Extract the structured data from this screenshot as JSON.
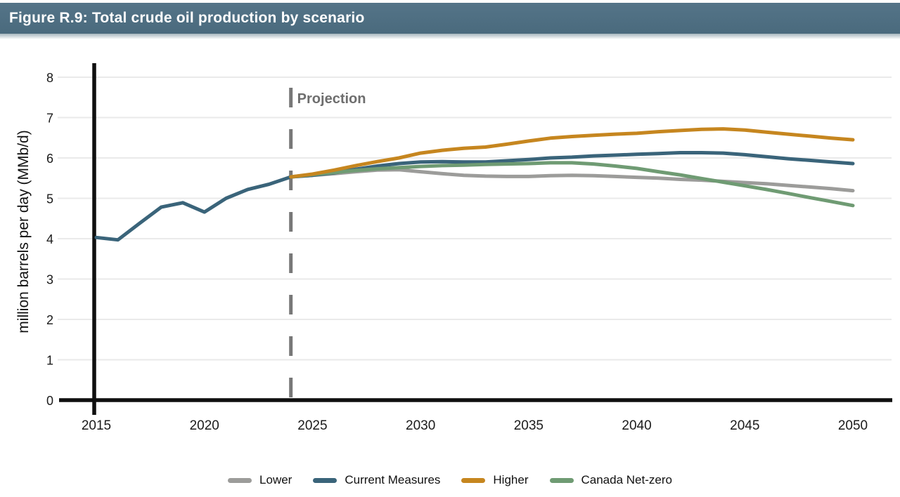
{
  "header": {
    "title": "Figure R.9: Total crude oil production by scenario",
    "background": "#4E6E80"
  },
  "chart_data": {
    "type": "line",
    "title": "Figure R.9: Total crude oil production by scenario",
    "ylabel": "million barrels per day (MMb/d)",
    "xlabel": "",
    "ylim": [
      0,
      8
    ],
    "xlim": [
      2013.3,
      2051.8
    ],
    "yticks": [
      0,
      1,
      2,
      3,
      4,
      5,
      6,
      7,
      8
    ],
    "xticks": [
      2015,
      2020,
      2025,
      2030,
      2035,
      2040,
      2045,
      2050
    ],
    "grid": "horizontal",
    "gridline_color": "#eaeaea",
    "axis_color": "#0f0f0f",
    "legend_position": "bottom",
    "annotation": {
      "text": "Projection",
      "x": 2024,
      "style": "dashed-vertical-line",
      "color": "#787878",
      "text_color": "#6e6e6e"
    },
    "series": [
      {
        "name": "Historical",
        "legend": false,
        "color": "#3A647A",
        "x": [
          2015,
          2016,
          2017,
          2018,
          2019,
          2020,
          2021,
          2022,
          2023,
          2024
        ],
        "values": [
          4.03,
          3.97,
          4.38,
          4.78,
          4.89,
          4.66,
          5.0,
          5.22,
          5.35,
          5.53
        ]
      },
      {
        "name": "Lower",
        "legend": true,
        "color": "#9C9C9A",
        "x": [
          2024,
          2025,
          2026,
          2027,
          2028,
          2029,
          2030,
          2031,
          2032,
          2033,
          2034,
          2035,
          2036,
          2037,
          2038,
          2039,
          2040,
          2041,
          2042,
          2043,
          2044,
          2045,
          2046,
          2047,
          2048,
          2049,
          2050
        ],
        "values": [
          5.53,
          5.57,
          5.61,
          5.66,
          5.7,
          5.71,
          5.66,
          5.61,
          5.57,
          5.55,
          5.54,
          5.54,
          5.56,
          5.57,
          5.56,
          5.54,
          5.52,
          5.5,
          5.47,
          5.45,
          5.42,
          5.39,
          5.36,
          5.32,
          5.28,
          5.24,
          5.19
        ]
      },
      {
        "name": "Current Measures",
        "legend": true,
        "color": "#3A647A",
        "x": [
          2024,
          2025,
          2026,
          2027,
          2028,
          2029,
          2030,
          2031,
          2032,
          2033,
          2034,
          2035,
          2036,
          2037,
          2038,
          2039,
          2040,
          2041,
          2042,
          2043,
          2044,
          2045,
          2046,
          2047,
          2048,
          2049,
          2050
        ],
        "values": [
          5.53,
          5.57,
          5.63,
          5.72,
          5.8,
          5.86,
          5.9,
          5.91,
          5.9,
          5.9,
          5.93,
          5.96,
          6.0,
          6.02,
          6.05,
          6.07,
          6.09,
          6.11,
          6.13,
          6.13,
          6.12,
          6.08,
          6.03,
          5.98,
          5.94,
          5.9,
          5.86
        ]
      },
      {
        "name": "Canada Net-zero",
        "legend": true,
        "color": "#6F9B73",
        "x": [
          2024,
          2025,
          2026,
          2027,
          2028,
          2029,
          2030,
          2031,
          2032,
          2033,
          2034,
          2035,
          2036,
          2037,
          2038,
          2039,
          2040,
          2041,
          2042,
          2043,
          2044,
          2045,
          2046,
          2047,
          2048,
          2049,
          2050
        ],
        "values": [
          5.53,
          5.59,
          5.64,
          5.69,
          5.73,
          5.76,
          5.79,
          5.81,
          5.82,
          5.84,
          5.85,
          5.86,
          5.88,
          5.88,
          5.85,
          5.8,
          5.74,
          5.66,
          5.58,
          5.49,
          5.4,
          5.31,
          5.22,
          5.12,
          5.02,
          4.92,
          4.82
        ]
      },
      {
        "name": "Higher",
        "legend": true,
        "color": "#C6861F",
        "x": [
          2024,
          2025,
          2026,
          2027,
          2028,
          2029,
          2030,
          2031,
          2032,
          2033,
          2034,
          2035,
          2036,
          2037,
          2038,
          2039,
          2040,
          2041,
          2042,
          2043,
          2044,
          2045,
          2046,
          2047,
          2048,
          2049,
          2050
        ],
        "values": [
          5.53,
          5.6,
          5.7,
          5.81,
          5.91,
          6.0,
          6.12,
          6.19,
          6.24,
          6.27,
          6.34,
          6.42,
          6.49,
          6.53,
          6.56,
          6.59,
          6.61,
          6.65,
          6.68,
          6.71,
          6.72,
          6.69,
          6.64,
          6.59,
          6.54,
          6.49,
          6.45
        ]
      }
    ]
  },
  "legend": {
    "items": [
      {
        "label": "Lower",
        "color": "#9C9C9A"
      },
      {
        "label": "Current Measures",
        "color": "#3A647A"
      },
      {
        "label": "Higher",
        "color": "#C6861F"
      },
      {
        "label": "Canada Net-zero",
        "color": "#6F9B73"
      }
    ]
  }
}
